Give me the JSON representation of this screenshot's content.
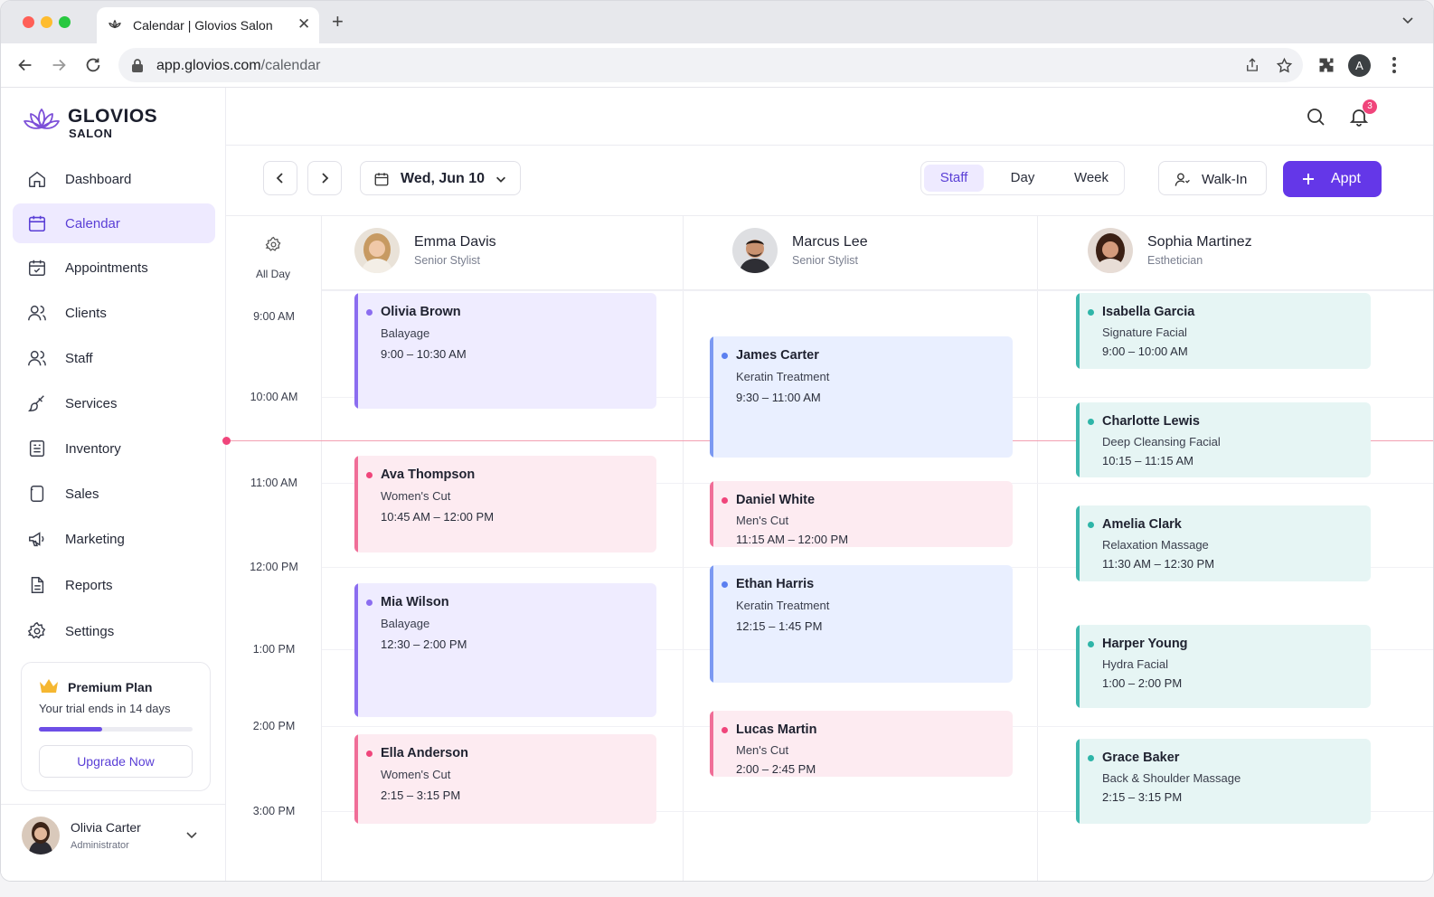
{
  "browser": {
    "tab_title": "Calendar | Glovios Salon",
    "url_host": "app.glovios.com",
    "url_path": "/calendar",
    "profile_initial": "A"
  },
  "brand": {
    "name": "GLOVIOS",
    "sub": "SALON"
  },
  "sidebar": {
    "items": [
      {
        "label": "Dashboard",
        "icon": "home-icon"
      },
      {
        "label": "Calendar",
        "icon": "calendar-icon",
        "active": true
      },
      {
        "label": "Appointments",
        "icon": "calendar-check-icon"
      },
      {
        "label": "Clients",
        "icon": "users-icon"
      },
      {
        "label": "Staff",
        "icon": "staff-icon"
      },
      {
        "label": "Services",
        "icon": "brush-icon"
      },
      {
        "label": "Inventory",
        "icon": "inventory-icon"
      },
      {
        "label": "Sales",
        "icon": "sales-icon"
      },
      {
        "label": "Marketing",
        "icon": "megaphone-icon"
      },
      {
        "label": "Reports",
        "icon": "report-icon"
      },
      {
        "label": "Settings",
        "icon": "gear-icon"
      }
    ],
    "premium": {
      "title": "Premium Plan",
      "subtitle": "Your trial ends in 14 days",
      "progress": 0.41,
      "button": "Upgrade Now"
    },
    "user": {
      "name": "Olivia Carter",
      "role": "Administrator"
    }
  },
  "topbar": {
    "notification_count": "3"
  },
  "controls": {
    "date_label": "Wed, Jun 10",
    "views": [
      "Staff",
      "Day",
      "Week"
    ],
    "active_view": "Staff",
    "walkin_label": "Walk-In",
    "appt_label": "Appt"
  },
  "calendar": {
    "all_day_label": "All Day",
    "times": [
      "9:00 AM",
      "10:00 AM",
      "11:00 AM",
      "12:00 PM",
      "1:00 PM",
      "2:00 PM",
      "3:00 PM"
    ],
    "staff": [
      {
        "name": "Emma Davis",
        "role": "Senior Stylist",
        "appointments": [
          {
            "client": "Olivia Brown",
            "service": "Balayage",
            "time": "9:00 – 10:30 AM",
            "color": "purple"
          },
          {
            "client": "Ava Thompson",
            "service": "Women's Cut",
            "time": "10:45 AM – 12:00 PM",
            "color": "pink"
          },
          {
            "client": "Mia Wilson",
            "service": "Balayage",
            "time": "12:30 – 2:00 PM",
            "color": "purple"
          },
          {
            "client": "Ella Anderson",
            "service": "Women's Cut",
            "time": "2:15 – 3:15 PM",
            "color": "pink"
          }
        ]
      },
      {
        "name": "Marcus Lee",
        "role": "Senior Stylist",
        "appointments": [
          {
            "client": "James Carter",
            "service": "Keratin Treatment",
            "time": "9:30 – 11:00 AM",
            "color": "blue"
          },
          {
            "client": "Daniel White",
            "service": "Men's Cut",
            "time": "11:15 AM – 12:00 PM",
            "color": "pink"
          },
          {
            "client": "Ethan Harris",
            "service": "Keratin Treatment",
            "time": "12:15 – 1:45 PM",
            "color": "blue"
          },
          {
            "client": "Lucas Martin",
            "service": "Men's Cut",
            "time": "2:00 – 2:45 PM",
            "color": "pink"
          }
        ]
      },
      {
        "name": "Sophia Martinez",
        "role": "Esthetician",
        "appointments": [
          {
            "client": "Isabella Garcia",
            "service": "Signature Facial",
            "time": "9:00 – 10:00 AM",
            "color": "teal"
          },
          {
            "client": "Charlotte Lewis",
            "service": "Deep Cleansing Facial",
            "time": "10:15 – 11:15 AM",
            "color": "teal"
          },
          {
            "client": "Amelia Clark",
            "service": "Relaxation Massage",
            "time": "11:30 AM – 12:30 PM",
            "color": "teal"
          },
          {
            "client": "Harper Young",
            "service": "Hydra Facial",
            "time": "1:00 – 2:00 PM",
            "color": "teal"
          },
          {
            "client": "Grace Baker",
            "service": "Back & Shoulder Massage",
            "time": "2:15 – 3:15 PM",
            "color": "teal"
          }
        ]
      }
    ]
  },
  "colors": {
    "accent": "#6437e8",
    "now_line": "#f0457b",
    "purple": "#8b6df0",
    "pink": "#f06e98",
    "blue": "#7b99f2",
    "teal": "#3db7ad"
  }
}
